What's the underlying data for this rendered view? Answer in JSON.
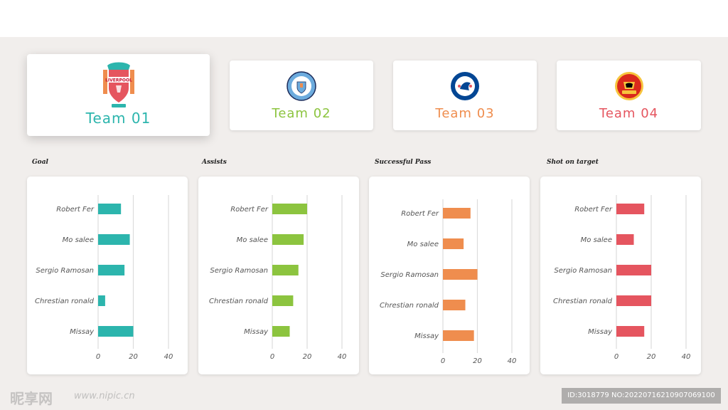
{
  "teams": [
    {
      "name": "Team 01",
      "crest_label": "LIVERPOOL",
      "color": "#2cb5ad",
      "crest": "liverpool-crest-icon"
    },
    {
      "name": "Team 02",
      "crest_label": "MANCHESTER CITY",
      "color": "#8cc43f",
      "crest": "manchester-city-crest-icon"
    },
    {
      "name": "Team 03",
      "crest_label": "CHELSEA",
      "color": "#ef8d4e",
      "crest": "chelsea-crest-icon"
    },
    {
      "name": "Team 04",
      "crest_label": "UNITED",
      "color": "#e5555f",
      "crest": "manchester-united-crest-icon"
    }
  ],
  "chart_data": [
    {
      "type": "bar",
      "title": "Goal",
      "categories": [
        "Robert Fer",
        "Mo salee",
        "Sergio Ramosan",
        "Chrestian ronald",
        "Missay"
      ],
      "values": [
        13,
        18,
        15,
        4,
        20
      ],
      "xlim": [
        0,
        40
      ],
      "ticks": [
        "0",
        "20",
        "40"
      ],
      "color": "#2cb5ad"
    },
    {
      "type": "bar",
      "title": "Assists",
      "categories": [
        "Robert Fer",
        "Mo salee",
        "Sergio Ramosan",
        "Chrestian ronald",
        "Missay"
      ],
      "values": [
        20,
        18,
        15,
        12,
        10
      ],
      "xlim": [
        0,
        40
      ],
      "ticks": [
        "0",
        "20",
        "40"
      ],
      "color": "#8cc43f"
    },
    {
      "type": "bar",
      "title": "Successful Pass",
      "categories": [
        "Robert Fer",
        "Mo salee",
        "Sergio Ramosan",
        "Chrestian ronald",
        "Missay"
      ],
      "values": [
        16,
        12,
        20,
        13,
        18
      ],
      "xlim": [
        0,
        40
      ],
      "ticks": [
        "0",
        "20",
        "40"
      ],
      "color": "#ef8d4e"
    },
    {
      "type": "bar",
      "title": "Shot on target",
      "categories": [
        "Robert Fer",
        "Mo salee",
        "Sergio Ramosan",
        "Chrestian ronald",
        "Missay"
      ],
      "values": [
        16,
        10,
        20,
        20,
        16
      ],
      "xlim": [
        0,
        40
      ],
      "ticks": [
        "0",
        "20",
        "40"
      ],
      "color": "#e5555f"
    }
  ],
  "watermark": {
    "logo": "昵享网",
    "url": "www.nipic.cn",
    "id": "ID:3018779 NO:20220716210907069100"
  }
}
